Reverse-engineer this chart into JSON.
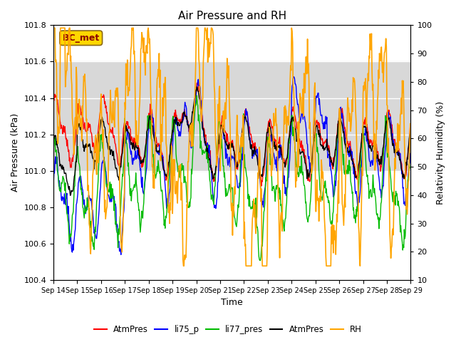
{
  "title": "Air Pressure and RH",
  "xlabel": "Time",
  "ylabel_left": "Air Pressure (kPa)",
  "ylabel_right": "Relativity Humidity (%)",
  "ylim_left": [
    100.4,
    101.8
  ],
  "ylim_right": [
    10,
    100
  ],
  "yticks_left": [
    100.4,
    100.6,
    100.8,
    101.0,
    101.2,
    101.4,
    101.6,
    101.8
  ],
  "yticks_right": [
    10,
    20,
    30,
    40,
    50,
    60,
    70,
    80,
    90,
    100
  ],
  "legend_entries": [
    "AtmPres",
    "li75_p",
    "li77_pres",
    "AtmPres",
    "RH"
  ],
  "line_colors": [
    "#FF0000",
    "#0000FF",
    "#00BB00",
    "#000000",
    "#FFA500"
  ],
  "line_widths": [
    1.0,
    1.0,
    1.0,
    1.0,
    1.2
  ],
  "annotation_text": "BC_met",
  "annotation_color": "#8B0000",
  "annotation_bg": "#FFD700",
  "shaded_region": [
    101.0,
    101.6
  ],
  "n_points": 720
}
